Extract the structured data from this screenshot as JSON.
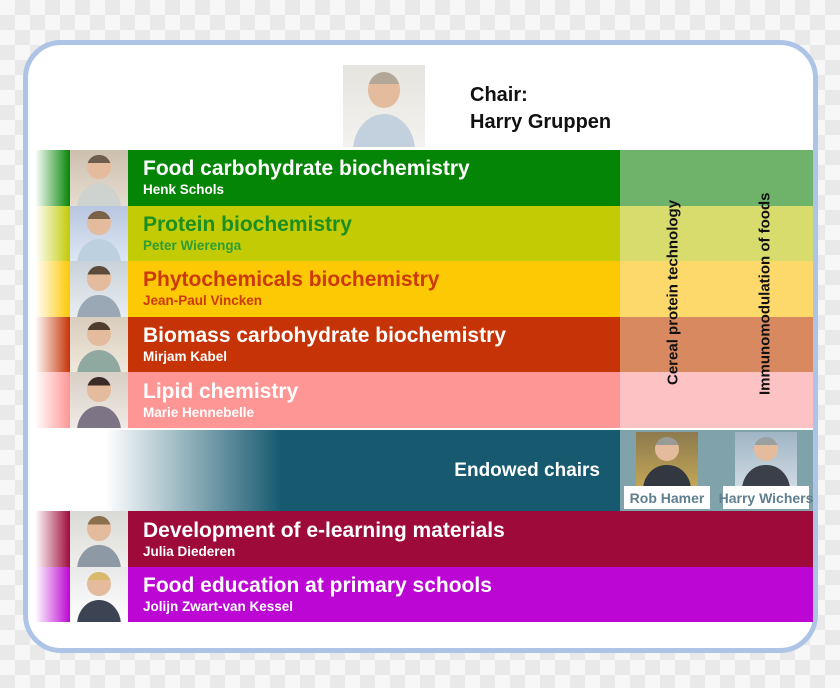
{
  "chair": {
    "label": "Chair:",
    "name": "Harry Gruppen"
  },
  "groups": [
    {
      "title": "Food carbohydrate biochemistry",
      "leader": "Henk Schols",
      "color": "#058505",
      "muted_color": "#6fb26a",
      "title_color": "#ffffff",
      "leader_color": "#ffffff"
    },
    {
      "title": "Protein biochemistry",
      "leader": "Peter Wierenga",
      "color": "#c2cb04",
      "muted_color": "#d8dc6c",
      "title_color": "#1b8f1f",
      "leader_color": "#2f9e33"
    },
    {
      "title": "Phytochemicals biochemistry",
      "leader": "Jean-Paul Vincken",
      "color": "#fdc804",
      "muted_color": "#fdd96b",
      "title_color": "#cc390b",
      "leader_color": "#cc390b"
    },
    {
      "title": "Biomass carbohydrate biochemistry",
      "leader": "Mirjam Kabel",
      "color": "#c63306",
      "muted_color": "#d98960",
      "title_color": "#ffffff",
      "leader_color": "#ffffff"
    },
    {
      "title": "Lipid chemistry",
      "leader": "Marie Hennebelle",
      "color": "#fd9694",
      "muted_color": "#fcc2c4",
      "title_color": "#ffffff",
      "leader_color": "#ffffff"
    }
  ],
  "cross_programs": [
    {
      "label": "Cereal protein technology"
    },
    {
      "label": "Immunomodulation of foods"
    }
  ],
  "endowed": {
    "label": "Endowed chairs",
    "color": "#175a70",
    "card_bg": "#7fa2ab",
    "name_color": "#5f7e8e",
    "chairs": [
      {
        "name": "Rob Hamer"
      },
      {
        "name": "Harry Wichers"
      }
    ]
  },
  "education": [
    {
      "title": "Development of e-learning materials",
      "leader": "Julia Diederen",
      "color": "#9e0b3b",
      "title_color": "#ffffff",
      "leader_color": "#ffffff"
    },
    {
      "title": "Food education at primary schools",
      "leader": "Jolijn Zwart-van Kessel",
      "color": "#bc06d4",
      "title_color": "#ffffff",
      "leader_color": "#ffffff"
    }
  ],
  "frame": {
    "border_color": "#aec4e6"
  }
}
